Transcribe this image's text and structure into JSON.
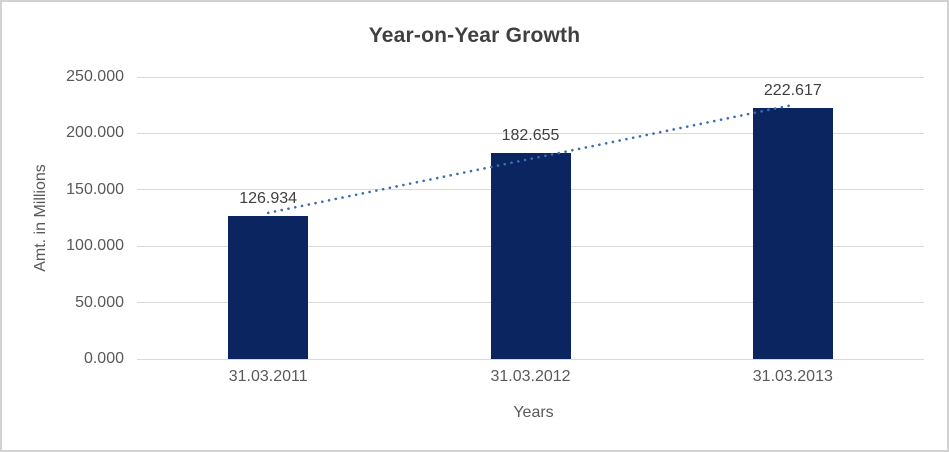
{
  "chart_data": {
    "type": "bar",
    "title": "Year-on-Year Growth",
    "categories": [
      "31.03.2011",
      "31.03.2012",
      "31.03.2013"
    ],
    "values": [
      126.934,
      182.655,
      222.617
    ],
    "data_labels": [
      "126.934",
      "182.655",
      "222.617"
    ],
    "xlabel": "Years",
    "ylabel": "Amt. in Millions",
    "ylim": [
      0,
      250
    ],
    "ytick_step": 50,
    "ytick_labels": [
      "0.000",
      "50.000",
      "100.000",
      "150.000",
      "200.000",
      "250.000"
    ],
    "grid": true,
    "legend": "none",
    "trendline": {
      "type": "linear",
      "style": "dotted"
    }
  },
  "colors": {
    "bar": "#0a2560",
    "trendline": "#3a6eb5",
    "gridline": "#d9d9d9",
    "axis_text": "#595959",
    "title_text": "#404040",
    "data_label_text": "#404040",
    "canvas_border": "#d2d2d2",
    "background": "#ffffff"
  }
}
